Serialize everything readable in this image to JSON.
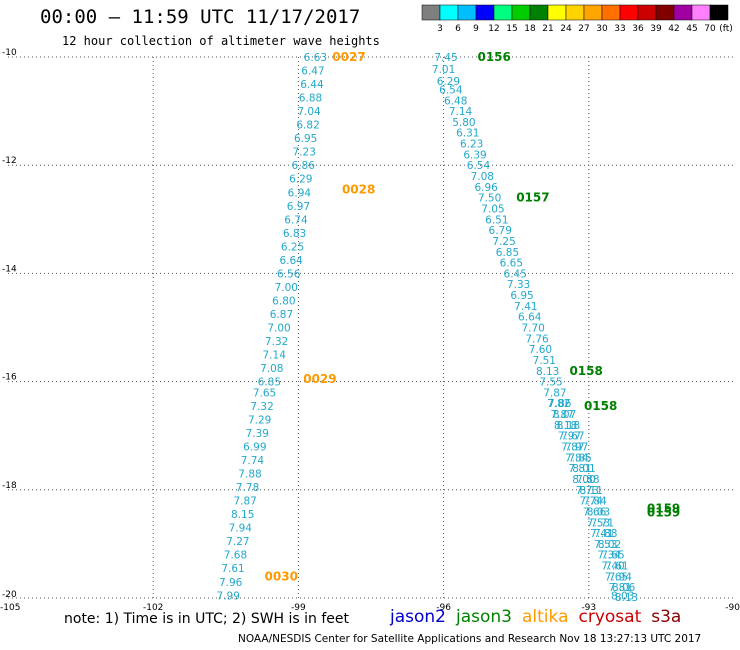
{
  "header": {
    "title": "00:00 – 11:59 UTC 11/17/2017",
    "subtitle": "12 hour collection of altimeter wave heights"
  },
  "colorbar": {
    "ticks": [
      "3",
      "6",
      "9",
      "12",
      "15",
      "18",
      "21",
      "24",
      "27",
      "30",
      "33",
      "36",
      "39",
      "42",
      "45",
      "70"
    ],
    "unit": "(ft)",
    "colors": [
      "#7f7f7f",
      "#00ffff",
      "#00bfff",
      "#0000ff",
      "#00ff80",
      "#00cc00",
      "#008000",
      "#ffff00",
      "#ffd200",
      "#ffa500",
      "#ff7000",
      "#ff0000",
      "#cc0000",
      "#800000",
      "#a000a0",
      "#ff80ff",
      "#000000"
    ]
  },
  "footer": {
    "note": "note: 1) Time is in UTC; 2) SWH is in feet",
    "credit": "NOAA/NESDIS Center for Satellite Applications and Research   Nov 18 13:27:13 UTC 2017",
    "satellites": [
      {
        "name": "jason2",
        "color": "#0000cc"
      },
      {
        "name": "jason3",
        "color": "#008000"
      },
      {
        "name": "altika",
        "color": "#ff9900"
      },
      {
        "name": "cryosat",
        "color": "#cc0000"
      },
      {
        "name": "s3a",
        "color": "#880000"
      }
    ]
  },
  "chart_data": {
    "type": "scatter",
    "xlim": [
      -105,
      -90
    ],
    "ylim": [
      -20,
      -10
    ],
    "x_ticks": [
      -105,
      -102,
      -99,
      -96,
      -93,
      -90
    ],
    "y_ticks": [
      -10,
      -12,
      -14,
      -16,
      -18,
      -20
    ],
    "grid": true,
    "value_color": "#22a8cc",
    "tracks": [
      {
        "satellite": "altika",
        "color": "#ff9900",
        "points": [
          [
            -98.65,
            -10.0,
            "6.63"
          ],
          [
            -98.7,
            -10.25,
            "6.47"
          ],
          [
            -98.72,
            -10.5,
            "6.44"
          ],
          [
            -98.75,
            -10.75,
            "6.88"
          ],
          [
            -98.78,
            -11.0,
            "7.04"
          ],
          [
            -98.8,
            -11.25,
            "6.82"
          ],
          [
            -98.85,
            -11.5,
            "6.95"
          ],
          [
            -98.88,
            -11.75,
            "7.23"
          ],
          [
            -98.9,
            -12.0,
            "6.86"
          ],
          [
            -98.95,
            -12.25,
            "6.29"
          ],
          [
            -98.98,
            -12.5,
            "6.94"
          ],
          [
            -99.0,
            -12.75,
            "6.97"
          ],
          [
            -99.05,
            -13.0,
            "6.74"
          ],
          [
            -99.08,
            -13.25,
            "6.83"
          ],
          [
            -99.12,
            -13.5,
            "6.25"
          ],
          [
            -99.15,
            -13.75,
            "6.64"
          ],
          [
            -99.2,
            -14.0,
            "6.56"
          ],
          [
            -99.25,
            -14.25,
            "7.00"
          ],
          [
            -99.3,
            -14.5,
            "6.80"
          ],
          [
            -99.35,
            -14.75,
            "6.87"
          ],
          [
            -99.4,
            -15.0,
            "7.00"
          ],
          [
            -99.45,
            -15.25,
            "7.32"
          ],
          [
            -99.5,
            -15.5,
            "7.14"
          ],
          [
            -99.55,
            -15.75,
            "7.08"
          ],
          [
            -99.6,
            -16.0,
            "6.85"
          ],
          [
            -99.7,
            -16.2,
            "7.65"
          ],
          [
            -99.75,
            -16.45,
            "7.32"
          ],
          [
            -99.8,
            -16.7,
            "7.29"
          ],
          [
            -99.85,
            -16.95,
            "7.39"
          ],
          [
            -99.9,
            -17.2,
            "6.99"
          ],
          [
            -99.95,
            -17.45,
            "7.74"
          ],
          [
            -100.0,
            -17.7,
            "7.88"
          ],
          [
            -100.05,
            -17.95,
            "7.78"
          ],
          [
            -100.1,
            -18.2,
            "7.87"
          ],
          [
            -100.15,
            -18.45,
            "8.15"
          ],
          [
            -100.2,
            -18.7,
            "7.94"
          ],
          [
            -100.25,
            -18.95,
            "7.27"
          ],
          [
            -100.3,
            -19.2,
            "7.68"
          ],
          [
            -100.35,
            -19.45,
            "7.61"
          ],
          [
            -100.4,
            -19.7,
            "7.96"
          ],
          [
            -100.45,
            -19.95,
            "7.99"
          ]
        ],
        "time_labels": [
          {
            "x": -98.3,
            "y": -10.0,
            "text": "0027"
          },
          {
            "x": -98.1,
            "y": -12.45,
            "text": "0028"
          },
          {
            "x": -98.9,
            "y": -15.95,
            "text": "0029"
          },
          {
            "x": -99.7,
            "y": -19.6,
            "text": "0030"
          }
        ]
      },
      {
        "satellite": "jason3",
        "color": "#008000",
        "points": [
          [
            -95.95,
            -10.0,
            "7.45"
          ],
          [
            -96.0,
            -10.22,
            "7.01"
          ],
          [
            -95.9,
            -10.44,
            "6.29"
          ],
          [
            -95.85,
            -10.6,
            "6.54"
          ],
          [
            -95.75,
            -10.8,
            "6.48"
          ],
          [
            -95.65,
            -11.0,
            "7.14"
          ],
          [
            -95.58,
            -11.2,
            "5.80"
          ],
          [
            -95.5,
            -11.4,
            "6.31"
          ],
          [
            -95.42,
            -11.6,
            "6.23"
          ],
          [
            -95.35,
            -11.8,
            "6.39"
          ],
          [
            -95.28,
            -12.0,
            "6.54"
          ],
          [
            -95.2,
            -12.2,
            "7.08"
          ],
          [
            -95.12,
            -12.4,
            "6.96"
          ],
          [
            -95.05,
            -12.6,
            "7.50"
          ],
          [
            -94.98,
            -12.8,
            "7.05"
          ],
          [
            -94.9,
            -13.0,
            "6.51"
          ],
          [
            -94.83,
            -13.2,
            "6.79"
          ],
          [
            -94.75,
            -13.4,
            "7.25"
          ],
          [
            -94.68,
            -13.6,
            "6.85"
          ],
          [
            -94.6,
            -13.8,
            "6.65"
          ],
          [
            -94.52,
            -14.0,
            "6.45"
          ],
          [
            -94.45,
            -14.2,
            "7.33"
          ],
          [
            -94.38,
            -14.4,
            "6.95"
          ],
          [
            -94.3,
            -14.6,
            "7.41"
          ],
          [
            -94.22,
            -14.8,
            "6.64"
          ],
          [
            -94.15,
            -15.0,
            "7.70"
          ],
          [
            -94.07,
            -15.2,
            "7.76"
          ],
          [
            -94.0,
            -15.4,
            "7.60"
          ],
          [
            -93.92,
            -15.6,
            "7.51"
          ],
          [
            -93.85,
            -15.8,
            "8.13"
          ],
          [
            -93.78,
            -16.0,
            "7.55"
          ],
          [
            -93.7,
            -16.2,
            "7.87"
          ],
          [
            -93.62,
            -16.4,
            "7.82"
          ],
          [
            -93.55,
            -16.6,
            "7.87"
          ],
          [
            -93.48,
            -16.8,
            "8.18"
          ],
          [
            -93.4,
            -17.0,
            "7.97"
          ],
          [
            -93.33,
            -17.2,
            "7.87"
          ],
          [
            -93.25,
            -17.4,
            "7.84"
          ],
          [
            -93.18,
            -17.6,
            "7.81"
          ],
          [
            -93.1,
            -17.8,
            "8.00"
          ],
          [
            -93.03,
            -18.0,
            "7.73"
          ],
          [
            -92.95,
            -18.2,
            "7.74"
          ],
          [
            -92.88,
            -18.4,
            "7.66"
          ],
          [
            -92.8,
            -18.6,
            "7.53"
          ],
          [
            -92.73,
            -18.8,
            "7.41"
          ],
          [
            -92.65,
            -19.0,
            "7.53"
          ],
          [
            -92.58,
            -19.2,
            "7.34"
          ],
          [
            -92.5,
            -19.4,
            "7.40"
          ],
          [
            -92.43,
            -19.6,
            "7.65"
          ],
          [
            -92.35,
            -19.8,
            "7.81"
          ],
          [
            -92.3,
            -19.95,
            "8.03"
          ]
        ],
        "time_labels": [
          {
            "x": -95.3,
            "y": -10.0,
            "text": "0156"
          },
          {
            "x": -94.5,
            "y": -12.6,
            "text": "0157"
          },
          {
            "x": -93.4,
            "y": -15.8,
            "text": "0158"
          },
          {
            "x": -93.1,
            "y": -16.45,
            "text": "0158"
          },
          {
            "x": -91.8,
            "y": -18.35,
            "text": "0159"
          },
          {
            "x": -91.8,
            "y": -18.42,
            "text": "0159"
          }
        ]
      },
      {
        "satellite": "jason3",
        "color": "#008000",
        "points": [
          [
            -93.6,
            -16.4,
            "7.86"
          ],
          [
            -93.5,
            -16.6,
            "8.07"
          ],
          [
            -93.42,
            -16.8,
            "8.18"
          ],
          [
            -93.33,
            -17.0,
            "7.67"
          ],
          [
            -93.25,
            -17.2,
            "7.97"
          ],
          [
            -93.18,
            -17.4,
            "7.85"
          ],
          [
            -93.1,
            -17.6,
            "8.01"
          ],
          [
            -93.02,
            -17.8,
            "7.88"
          ],
          [
            -92.95,
            -18.0,
            "8.11"
          ],
          [
            -92.87,
            -18.2,
            "7.84"
          ],
          [
            -92.8,
            -18.4,
            "8.03"
          ],
          [
            -92.72,
            -18.6,
            "7.71"
          ],
          [
            -92.65,
            -18.8,
            "7.88"
          ],
          [
            -92.57,
            -19.0,
            "8.02"
          ],
          [
            -92.5,
            -19.2,
            "7.65"
          ],
          [
            -92.42,
            -19.4,
            "7.61"
          ],
          [
            -92.35,
            -19.6,
            "7.94"
          ],
          [
            -92.28,
            -19.8,
            "8.06"
          ],
          [
            -92.22,
            -19.98,
            "8.13"
          ]
        ],
        "time_labels": []
      }
    ]
  }
}
